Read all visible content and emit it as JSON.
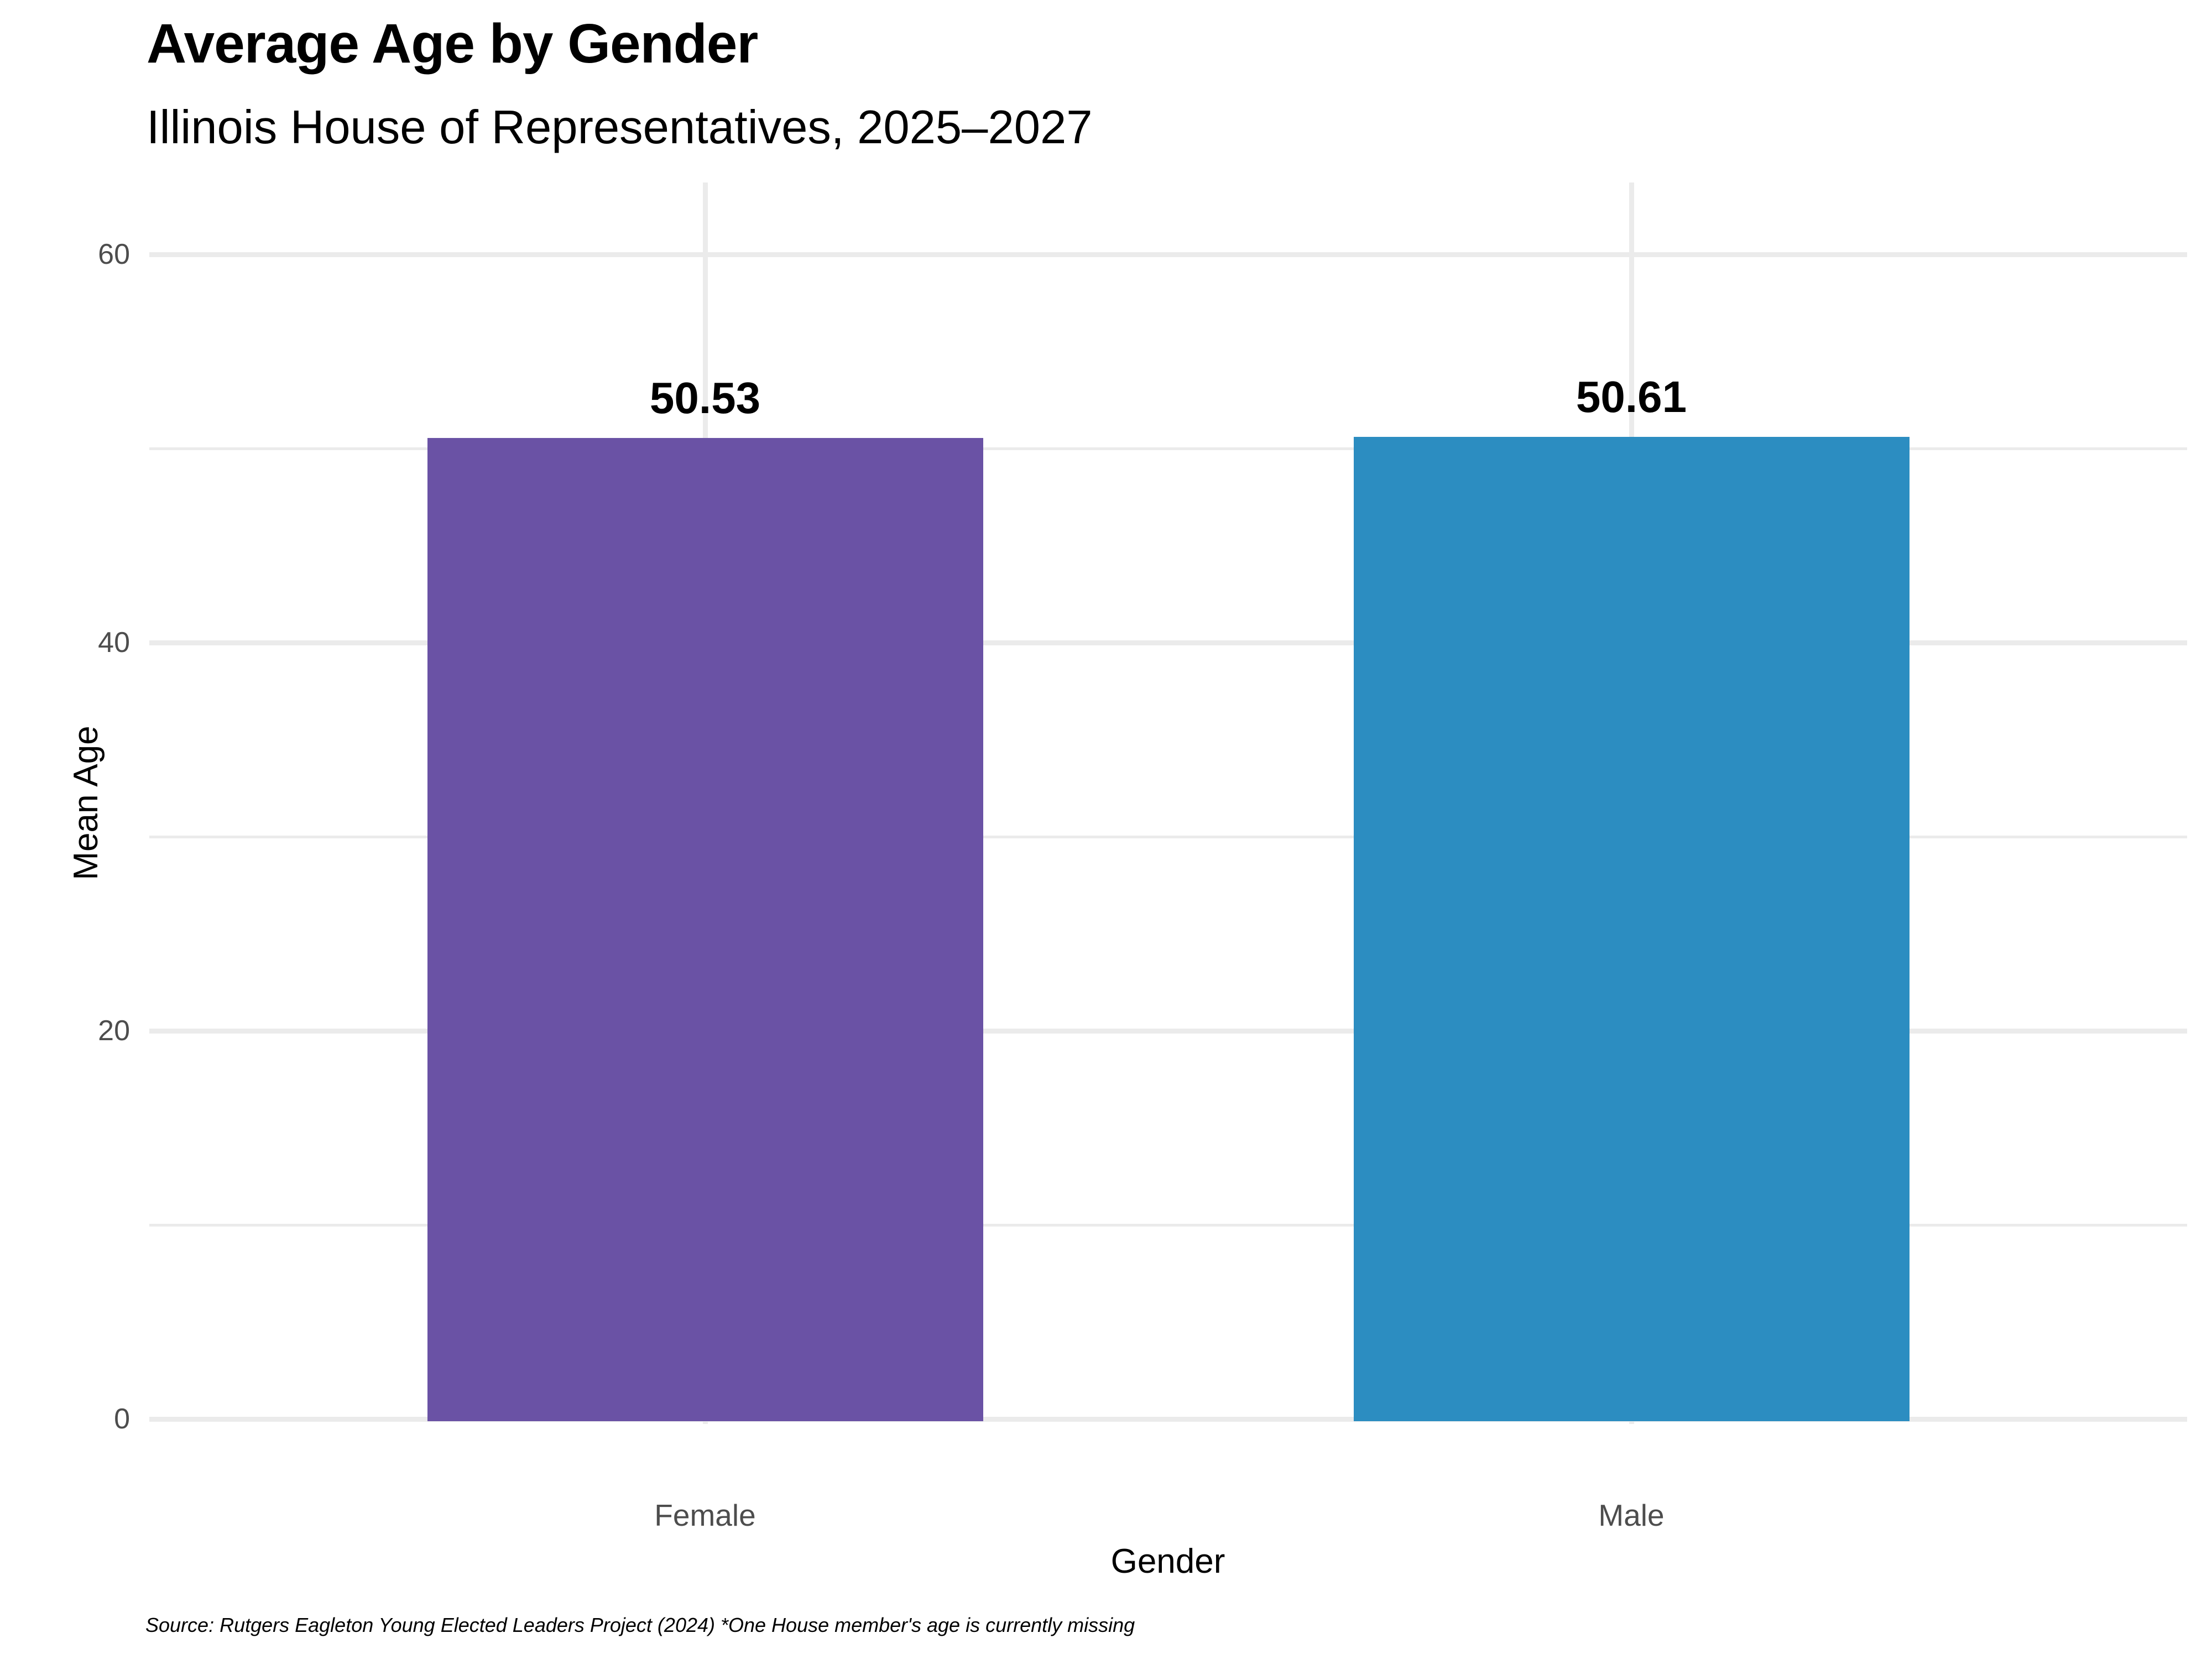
{
  "chart_data": {
    "type": "bar",
    "title": "Average Age by Gender",
    "subtitle": "Illinois House of Representatives, 2025–2027",
    "xlabel": "Gender",
    "ylabel": "Mean Age",
    "categories": [
      "Female",
      "Male"
    ],
    "values": [
      50.53,
      50.61
    ],
    "value_labels": [
      "50.53",
      "50.61"
    ],
    "bar_colors": [
      "#6A52A5",
      "#2C8DC1"
    ],
    "ylim": [
      0,
      63.7
    ],
    "yticks_major": [
      0,
      20,
      40,
      60
    ],
    "yticks_minor": [
      10,
      30,
      50
    ],
    "grid": "on",
    "legend": "none",
    "background_color": "#FFFFFF",
    "gridline_color": "#EBEBEB",
    "axis_text_color": "#4D4D4D",
    "caption": "Source: Rutgers Eagleton Young Elected Leaders Project (2024) *One House member's age is currently missing"
  }
}
